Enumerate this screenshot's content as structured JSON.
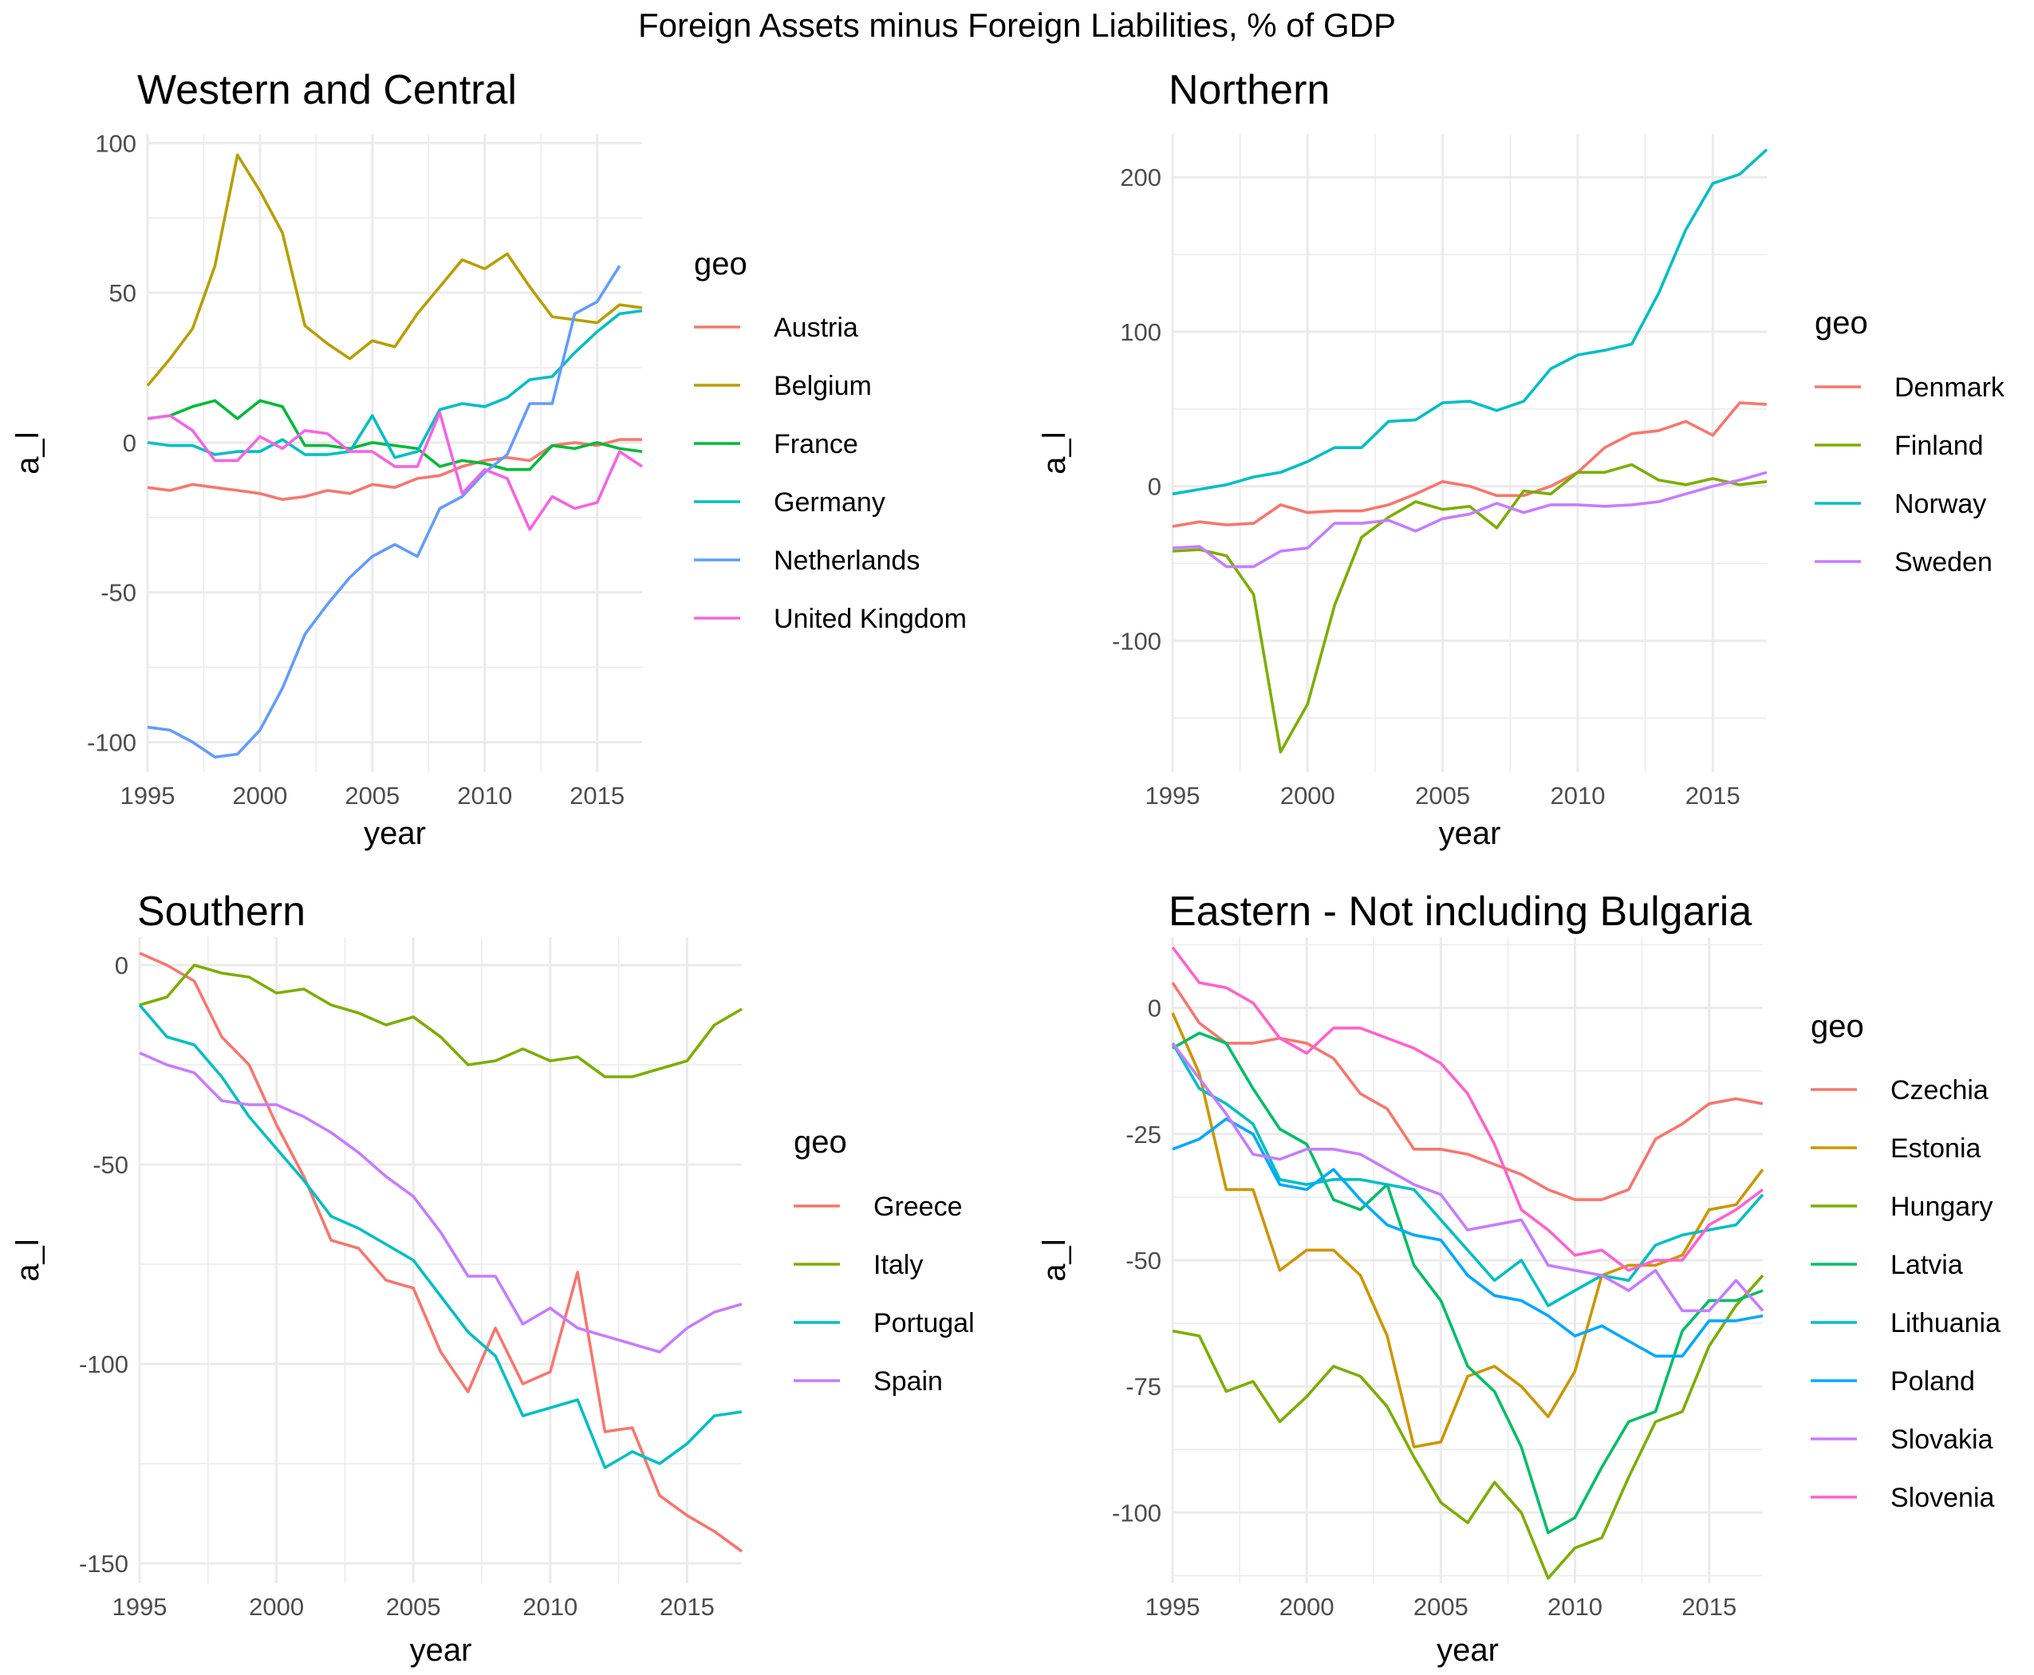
{
  "title": "Foreign Assets minus Foreign Liabilities, % of GDP",
  "chart_data": [
    {
      "type": "line",
      "title": "Western and Central",
      "xlabel": "year",
      "ylabel": "a_l",
      "legend_title": "geo",
      "xlim": [
        1995,
        2017
      ],
      "ylim": [
        -110,
        103
      ],
      "xticks": [
        1995,
        2000,
        2005,
        2010,
        2015
      ],
      "yticks": [
        -100,
        -50,
        0,
        50,
        100
      ],
      "x": [
        1995,
        1996,
        1997,
        1998,
        1999,
        2000,
        2001,
        2002,
        2003,
        2004,
        2005,
        2006,
        2007,
        2008,
        2009,
        2010,
        2011,
        2012,
        2013,
        2014,
        2015,
        2016,
        2017
      ],
      "series": [
        {
          "name": "Austria",
          "color": "#F8766D",
          "values": [
            -15,
            -16,
            -14,
            -15,
            -16,
            -17,
            -19,
            -18,
            -16,
            -17,
            -14,
            -15,
            -12,
            -11,
            -8,
            -6,
            -5,
            -6,
            -1,
            0,
            -1,
            1,
            1
          ]
        },
        {
          "name": "Belgium",
          "color": "#B79F00",
          "values": [
            19,
            28,
            38,
            59,
            96,
            84,
            70,
            39,
            33,
            28,
            34,
            32,
            43,
            52,
            61,
            58,
            63,
            52,
            42,
            41,
            40,
            46,
            45
          ]
        },
        {
          "name": "France",
          "color": "#00BA38",
          "values": [
            8,
            9,
            12,
            14,
            8,
            14,
            12,
            -1,
            -1,
            -2,
            0,
            -1,
            -2,
            -8,
            -6,
            -7,
            -9,
            -9,
            -1,
            -2,
            0,
            -2,
            -3
          ]
        },
        {
          "name": "Germany",
          "color": "#00BFC4",
          "values": [
            0,
            -1,
            -1,
            -4,
            -3,
            -3,
            1,
            -4,
            -4,
            -3,
            9,
            -5,
            -3,
            11,
            13,
            12,
            15,
            21,
            22,
            30,
            37,
            43,
            44
          ]
        },
        {
          "name": "Netherlands",
          "color": "#619CFF",
          "values": [
            -95,
            -96,
            -100,
            -105,
            -104,
            -96,
            -82,
            -64,
            -54,
            -45,
            -38,
            -34,
            -38,
            -22,
            -18,
            -10,
            -4,
            13,
            13,
            43,
            47,
            59,
            null
          ]
        },
        {
          "name": "United Kingdom",
          "color": "#F564E3",
          "values": [
            8,
            9,
            4,
            -6,
            -6,
            2,
            -2,
            4,
            3,
            -3,
            -3,
            -8,
            -8,
            10,
            -17,
            -9,
            -12,
            -29,
            -18,
            -22,
            -20,
            -3,
            -8
          ]
        }
      ]
    },
    {
      "type": "line",
      "title": "Northern",
      "xlabel": "year",
      "ylabel": "a_l",
      "legend_title": "geo",
      "xlim": [
        1995,
        2017
      ],
      "ylim": [
        -185,
        228
      ],
      "xticks": [
        1995,
        2000,
        2005,
        2010,
        2015
      ],
      "yticks": [
        -100,
        0,
        100,
        200
      ],
      "x": [
        1995,
        1996,
        1997,
        1998,
        1999,
        2000,
        2001,
        2002,
        2003,
        2004,
        2005,
        2006,
        2007,
        2008,
        2009,
        2010,
        2011,
        2012,
        2013,
        2014,
        2015,
        2016,
        2017
      ],
      "series": [
        {
          "name": "Denmark",
          "color": "#F8766D",
          "values": [
            -26,
            -23,
            -25,
            -24,
            -12,
            -17,
            -16,
            -16,
            -12,
            -5,
            3,
            0,
            -6,
            -6,
            0,
            9,
            25,
            34,
            36,
            42,
            33,
            54,
            53
          ]
        },
        {
          "name": "Finland",
          "color": "#7CAE00",
          "values": [
            -42,
            -41,
            -45,
            -70,
            -172,
            -141,
            -77,
            -33,
            -20,
            -10,
            -15,
            -13,
            -27,
            -3,
            -5,
            9,
            9,
            14,
            4,
            1,
            5,
            1,
            3
          ]
        },
        {
          "name": "Norway",
          "color": "#00BFC4",
          "values": [
            -5,
            -2,
            1,
            6,
            9,
            16,
            25,
            25,
            42,
            43,
            54,
            55,
            49,
            55,
            76,
            85,
            88,
            92,
            125,
            166,
            196,
            202,
            218
          ]
        },
        {
          "name": "Sweden",
          "color": "#C77CFF",
          "values": [
            -40,
            -39,
            -52,
            -52,
            -42,
            -40,
            -24,
            -24,
            -22,
            -29,
            -21,
            -18,
            -11,
            -17,
            -12,
            -12,
            -13,
            -12,
            -10,
            -5,
            0,
            4,
            9
          ]
        }
      ]
    },
    {
      "type": "line",
      "title": "Southern",
      "xlabel": "year",
      "ylabel": "a_l",
      "legend_title": "geo",
      "xlim": [
        1995,
        2017
      ],
      "ylim": [
        -155,
        7
      ],
      "xticks": [
        1995,
        2000,
        2005,
        2010,
        2015
      ],
      "yticks": [
        -150,
        -100,
        -50,
        0
      ],
      "x": [
        1995,
        1996,
        1997,
        1998,
        1999,
        2000,
        2001,
        2002,
        2003,
        2004,
        2005,
        2006,
        2007,
        2008,
        2009,
        2010,
        2011,
        2012,
        2013,
        2014,
        2015,
        2016,
        2017
      ],
      "series": [
        {
          "name": "Greece",
          "color": "#F8766D",
          "values": [
            3,
            0,
            -4,
            -18,
            -25,
            -40,
            -53,
            -69,
            -71,
            -79,
            -81,
            -97,
            -107,
            -91,
            -105,
            -102,
            -77,
            -117,
            -116,
            -133,
            -138,
            -142,
            -147
          ]
        },
        {
          "name": "Italy",
          "color": "#7CAE00",
          "values": [
            -10,
            -8,
            0,
            -2,
            -3,
            -7,
            -6,
            -10,
            -12,
            -15,
            -13,
            -18,
            -25,
            -24,
            -21,
            -24,
            -23,
            -28,
            -28,
            -26,
            -24,
            -15,
            -11
          ]
        },
        {
          "name": "Portugal",
          "color": "#00BFC4",
          "values": [
            -10,
            -18,
            -20,
            -28,
            -38,
            -46,
            -54,
            -63,
            -66,
            -70,
            -74,
            -83,
            -92,
            -98,
            -113,
            -111,
            -109,
            -126,
            -122,
            -125,
            -120,
            -113,
            -112
          ]
        },
        {
          "name": "Spain",
          "color": "#C77CFF",
          "values": [
            -22,
            -25,
            -27,
            -34,
            -35,
            -35,
            -38,
            -42,
            -47,
            -53,
            -58,
            -67,
            -78,
            -78,
            -90,
            -86,
            -91,
            -93,
            -95,
            -97,
            -91,
            -87,
            -85
          ]
        }
      ]
    },
    {
      "type": "line",
      "title": "Eastern - Not including Bulgaria",
      "xlabel": "year",
      "ylabel": "a_l",
      "legend_title": "geo",
      "xlim": [
        1995,
        2017
      ],
      "ylim": [
        -114,
        14
      ],
      "xticks": [
        1995,
        2000,
        2005,
        2010,
        2015
      ],
      "yticks": [
        -100,
        -75,
        -50,
        -25,
        0
      ],
      "x": [
        1995,
        1996,
        1997,
        1998,
        1999,
        2000,
        2001,
        2002,
        2003,
        2004,
        2005,
        2006,
        2007,
        2008,
        2009,
        2010,
        2011,
        2012,
        2013,
        2014,
        2015,
        2016,
        2017
      ],
      "series": [
        {
          "name": "Czechia",
          "color": "#F8766D",
          "values": [
            5,
            -3,
            -7,
            -7,
            -6,
            -7,
            -10,
            -17,
            -20,
            -28,
            -28,
            -29,
            -31,
            -33,
            -36,
            -38,
            -38,
            -36,
            -26,
            -23,
            -19,
            -18,
            -19
          ]
        },
        {
          "name": "Estonia",
          "color": "#CD9600",
          "values": [
            -1,
            -13,
            -36,
            -36,
            -52,
            -48,
            -48,
            -53,
            -65,
            -87,
            -86,
            -73,
            -71,
            -75,
            -81,
            -72,
            -53,
            -51,
            -51,
            -49,
            -40,
            -39,
            -32
          ]
        },
        {
          "name": "Hungary",
          "color": "#7CAE00",
          "values": [
            -64,
            -65,
            -76,
            -74,
            -82,
            -77,
            -71,
            -73,
            -79,
            -89,
            -98,
            -102,
            -94,
            -100,
            -113,
            -107,
            -105,
            -93,
            -82,
            -80,
            -67,
            -59,
            -53
          ]
        },
        {
          "name": "Latvia",
          "color": "#00BE67",
          "values": [
            -8,
            -5,
            -7,
            -16,
            -24,
            -27,
            -38,
            -40,
            -35,
            -51,
            -58,
            -71,
            -76,
            -87,
            -104,
            -101,
            -91,
            -82,
            -80,
            -64,
            -58,
            -58,
            -56
          ]
        },
        {
          "name": "Lithuania",
          "color": "#00BFC4",
          "values": [
            -7,
            -16,
            -19,
            -23,
            -34,
            -35,
            -34,
            -34,
            -35,
            -36,
            -42,
            -48,
            -54,
            -50,
            -59,
            -56,
            -53,
            -54,
            -47,
            -45,
            -44,
            -43,
            -37
          ]
        },
        {
          "name": "Poland",
          "color": "#00A9FF",
          "values": [
            -28,
            -26,
            -22,
            -25,
            -35,
            -36,
            -32,
            -38,
            -43,
            -45,
            -46,
            -53,
            -57,
            -58,
            -61,
            -65,
            -63,
            -66,
            -69,
            -69,
            -62,
            -62,
            -61
          ]
        },
        {
          "name": "Slovakia",
          "color": "#C77CFF",
          "values": [
            -7,
            -14,
            -21,
            -29,
            -30,
            -28,
            -28,
            -29,
            -32,
            -35,
            -37,
            -44,
            -43,
            -42,
            -51,
            -52,
            -53,
            -56,
            -52,
            -60,
            -60,
            -54,
            -60
          ]
        },
        {
          "name": "Slovenia",
          "color": "#FF61CC",
          "values": [
            12,
            5,
            4,
            1,
            -6,
            -9,
            -4,
            -4,
            -6,
            -8,
            -11,
            -17,
            -27,
            -40,
            -44,
            -49,
            -48,
            -52,
            -50,
            -50,
            -43,
            -40,
            -36
          ]
        }
      ]
    }
  ]
}
